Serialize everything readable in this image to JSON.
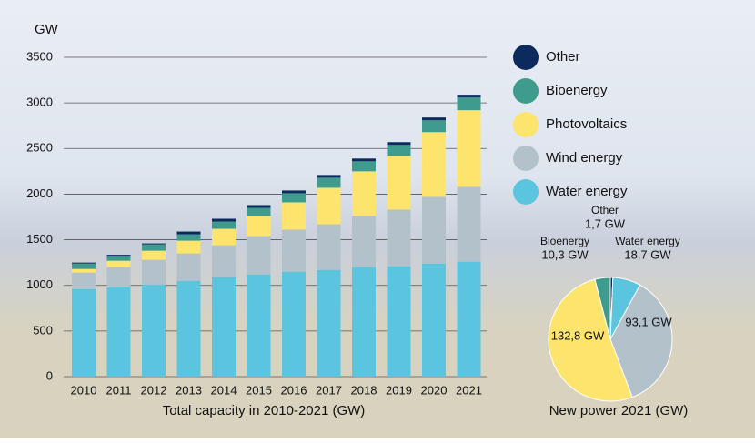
{
  "chart_data": [
    {
      "type": "stacked-bar",
      "y_label": "GW",
      "x_label": "Total capacity in 2010-2021 (GW)",
      "categories": [
        "2010",
        "2011",
        "2012",
        "2013",
        "2014",
        "2015",
        "2016",
        "2017",
        "2018",
        "2019",
        "2020",
        "2021"
      ],
      "series": [
        {
          "name": "Water energy",
          "color": "#5bc4de",
          "values": [
            960,
            980,
            1010,
            1050,
            1090,
            1120,
            1150,
            1170,
            1200,
            1210,
            1240,
            1260
          ]
        },
        {
          "name": "Wind energy",
          "color": "#b3c1cb",
          "values": [
            180,
            220,
            270,
            300,
            350,
            420,
            460,
            500,
            560,
            620,
            730,
            820
          ]
        },
        {
          "name": "Photovoltaics",
          "color": "#fde46c",
          "values": [
            40,
            70,
            100,
            140,
            180,
            220,
            300,
            400,
            490,
            590,
            710,
            840
          ]
        },
        {
          "name": "Bioenergy",
          "color": "#3e9b8d",
          "values": [
            60,
            55,
            70,
            70,
            80,
            90,
            100,
            110,
            110,
            120,
            130,
            140
          ]
        },
        {
          "name": "Other",
          "color": "#0d2a5e",
          "values": [
            10,
            10,
            10,
            30,
            30,
            30,
            30,
            30,
            30,
            30,
            30,
            30
          ]
        }
      ],
      "ylim": [
        0,
        3500
      ],
      "yticks": [
        0,
        500,
        1000,
        1500,
        2000,
        2500,
        3000,
        3500
      ],
      "grid": true
    },
    {
      "type": "pie",
      "title": "New power 2021 (GW)",
      "categories": [
        "Other",
        "Water energy",
        null,
        null,
        "Bioenergy"
      ],
      "values": [
        1.7,
        18.7,
        93.1,
        132.8,
        10.3
      ],
      "value_labels": [
        "1,7 GW",
        "18,7 GW",
        "93,1 GW",
        "132,8 GW",
        "10,3 GW"
      ],
      "colors": [
        "#0d2a5e",
        "#5bc4de",
        "#b3c1cb",
        "#fde46c",
        "#3e9b8d"
      ]
    }
  ]
}
